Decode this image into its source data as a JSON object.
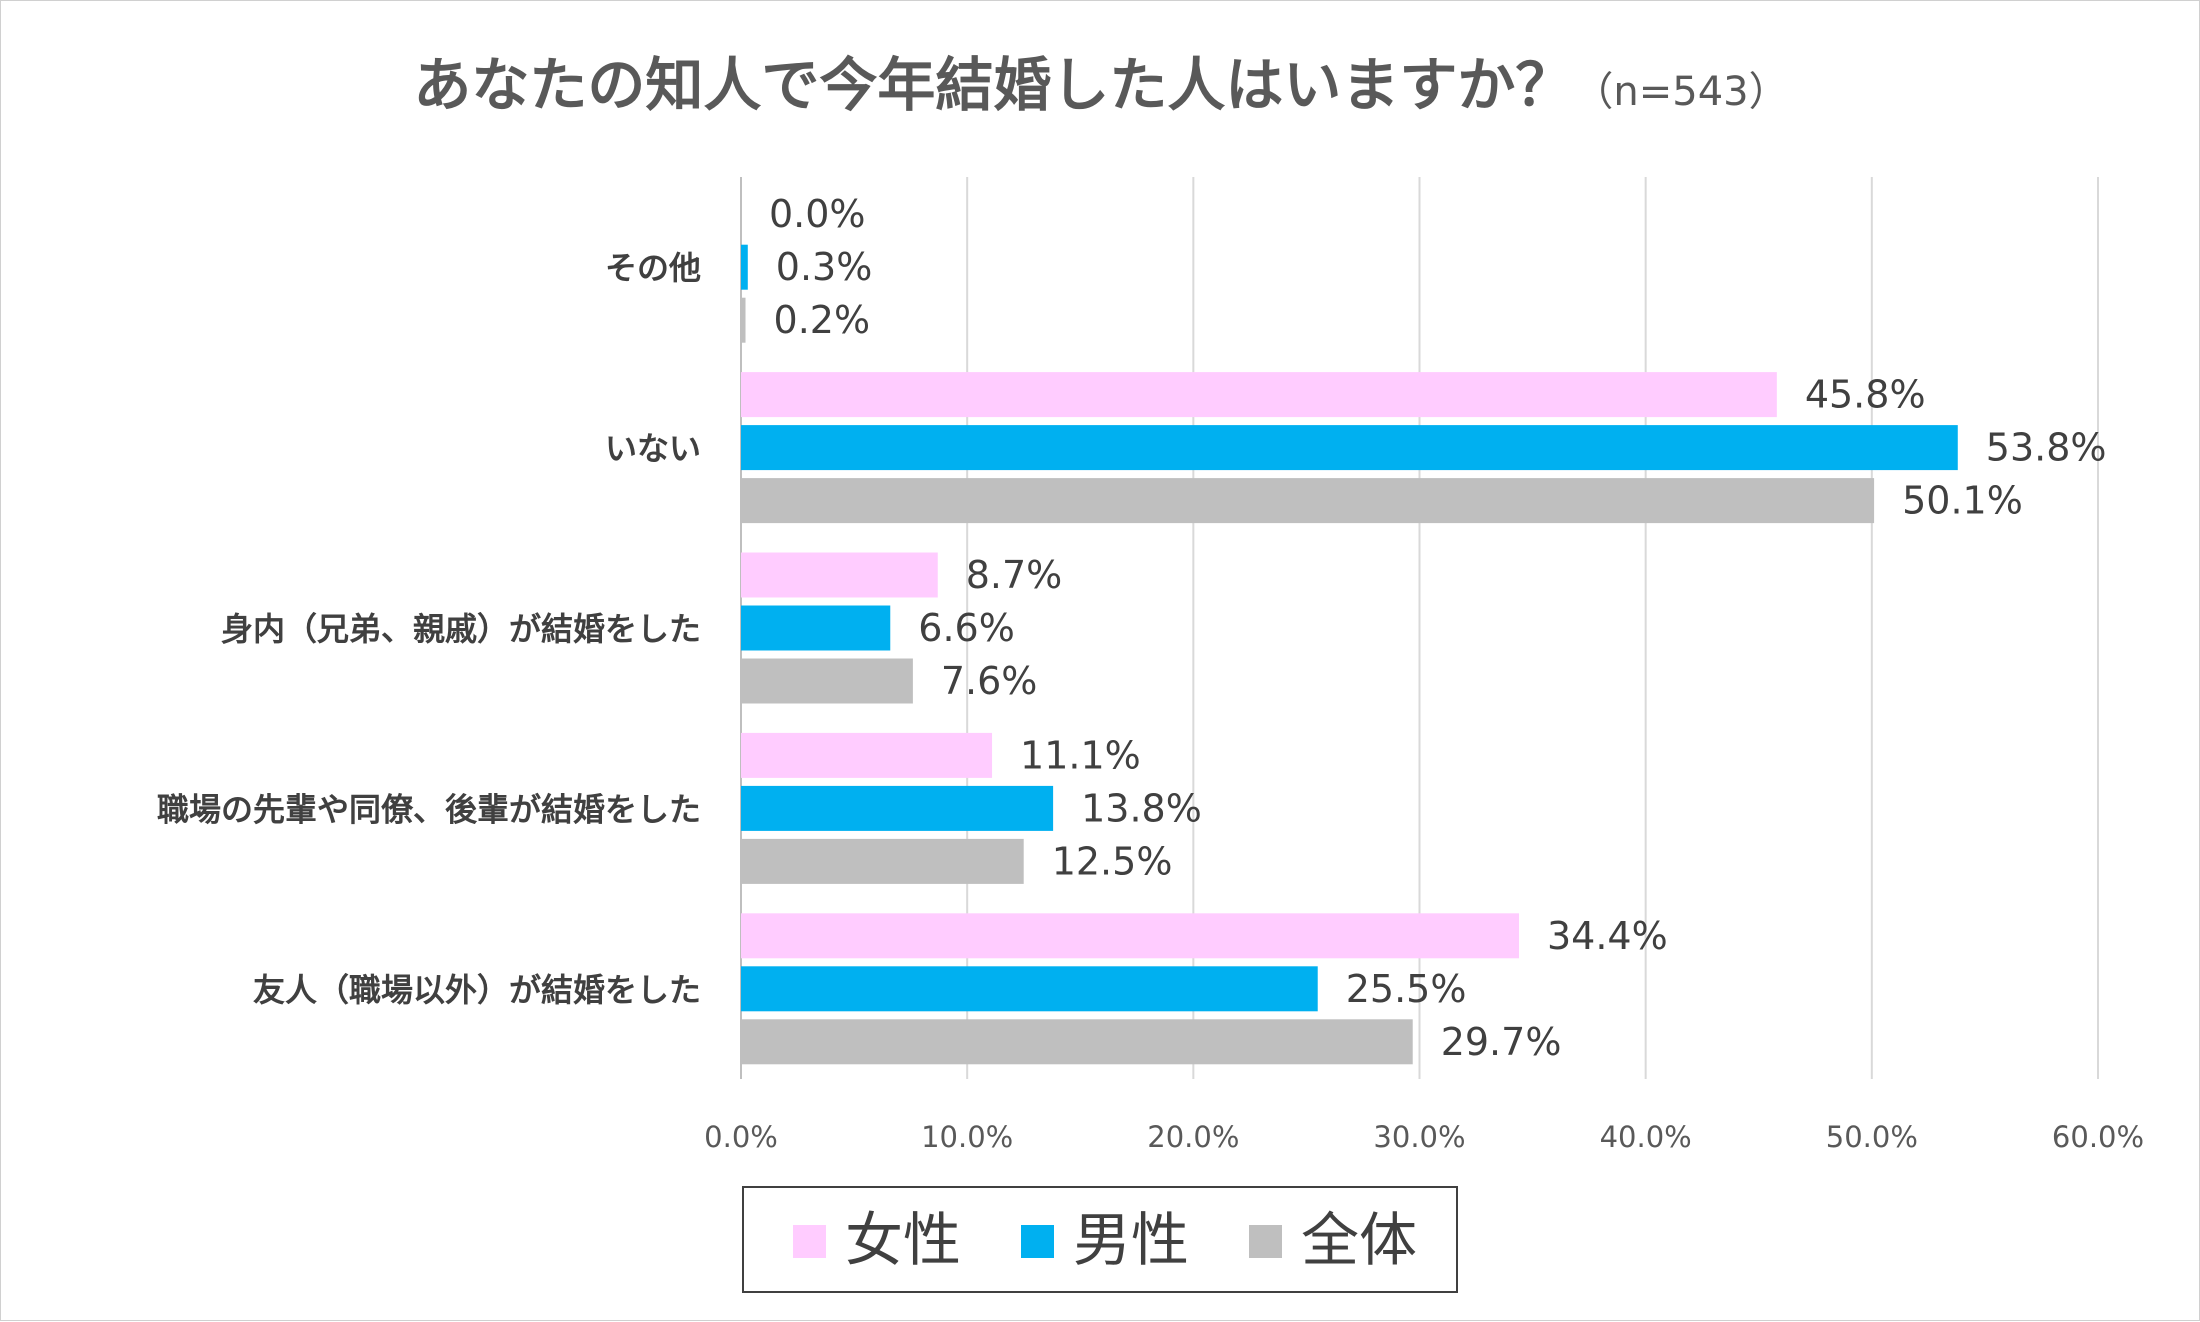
{
  "chart_data": {
    "type": "bar",
    "orientation": "horizontal",
    "title": "あなたの知人で今年結婚した人はいますか？",
    "subtitle": "（n=543）",
    "categories": [
      "その他",
      "いない",
      "身内（兄弟、親戚）が結婚をした",
      "職場の先輩や同僚、後輩が結婚をした",
      "友人（職場以外）が結婚をした"
    ],
    "series": [
      {
        "name": "女性",
        "color": "#ffccff",
        "values": [
          0.0,
          45.8,
          8.7,
          11.1,
          34.4
        ],
        "labels": [
          "0.0%",
          "45.8%",
          "8.7%",
          "11.1%",
          "34.4%"
        ]
      },
      {
        "name": "男性",
        "color": "#00b0f0",
        "values": [
          0.3,
          53.8,
          6.6,
          13.8,
          25.5
        ],
        "labels": [
          "0.3%",
          "53.8%",
          "6.6%",
          "13.8%",
          "25.5%"
        ]
      },
      {
        "name": "全体",
        "color": "#bfbfbf",
        "values": [
          0.2,
          50.1,
          7.6,
          12.5,
          29.7
        ],
        "labels": [
          "0.2%",
          "50.1%",
          "7.6%",
          "12.5%",
          "29.7%"
        ]
      }
    ],
    "xlim": [
      0,
      60
    ],
    "ticks": [
      0,
      10,
      20,
      30,
      40,
      50,
      60
    ],
    "tick_labels": [
      "0.0%",
      "10.0%",
      "20.0%",
      "30.0%",
      "40.0%",
      "50.0%",
      "60.0%"
    ],
    "grid": true,
    "legend_position": "bottom"
  }
}
